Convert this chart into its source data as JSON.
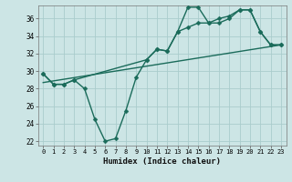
{
  "xlabel": "Humidex (Indice chaleur)",
  "xlim": [
    -0.5,
    23.5
  ],
  "ylim": [
    21.5,
    37.5
  ],
  "yticks": [
    22,
    24,
    26,
    28,
    30,
    32,
    34,
    36
  ],
  "xticks": [
    0,
    1,
    2,
    3,
    4,
    5,
    6,
    7,
    8,
    9,
    10,
    11,
    12,
    13,
    14,
    15,
    16,
    17,
    18,
    19,
    20,
    21,
    22,
    23
  ],
  "bg_color": "#cce5e5",
  "grid_color": "#aacccc",
  "line_color": "#1a6b5a",
  "line1_x": [
    0,
    1,
    2,
    3,
    4,
    5,
    6,
    7,
    8,
    9,
    10,
    11,
    12,
    13,
    14,
    15,
    16,
    17,
    18,
    19,
    20,
    21,
    22,
    23
  ],
  "line1_y": [
    29.7,
    28.5,
    28.5,
    29.0,
    28.0,
    24.5,
    22.0,
    22.3,
    25.5,
    29.3,
    31.3,
    32.5,
    32.3,
    34.5,
    37.3,
    37.3,
    35.5,
    36.0,
    36.3,
    37.0,
    37.0,
    34.5,
    33.0,
    33.0
  ],
  "line2_x": [
    0,
    1,
    2,
    3,
    10,
    11,
    12,
    13,
    14,
    15,
    16,
    17,
    18,
    19,
    20,
    21,
    22,
    23
  ],
  "line2_y": [
    29.7,
    28.5,
    28.5,
    29.0,
    31.3,
    32.5,
    32.3,
    34.5,
    35.0,
    35.5,
    35.5,
    35.5,
    36.0,
    37.0,
    37.0,
    34.5,
    33.0,
    33.0
  ],
  "line3_x": [
    0,
    23
  ],
  "line3_y": [
    28.7,
    33.0
  ],
  "marker_size": 2.5,
  "line_width": 1.0
}
